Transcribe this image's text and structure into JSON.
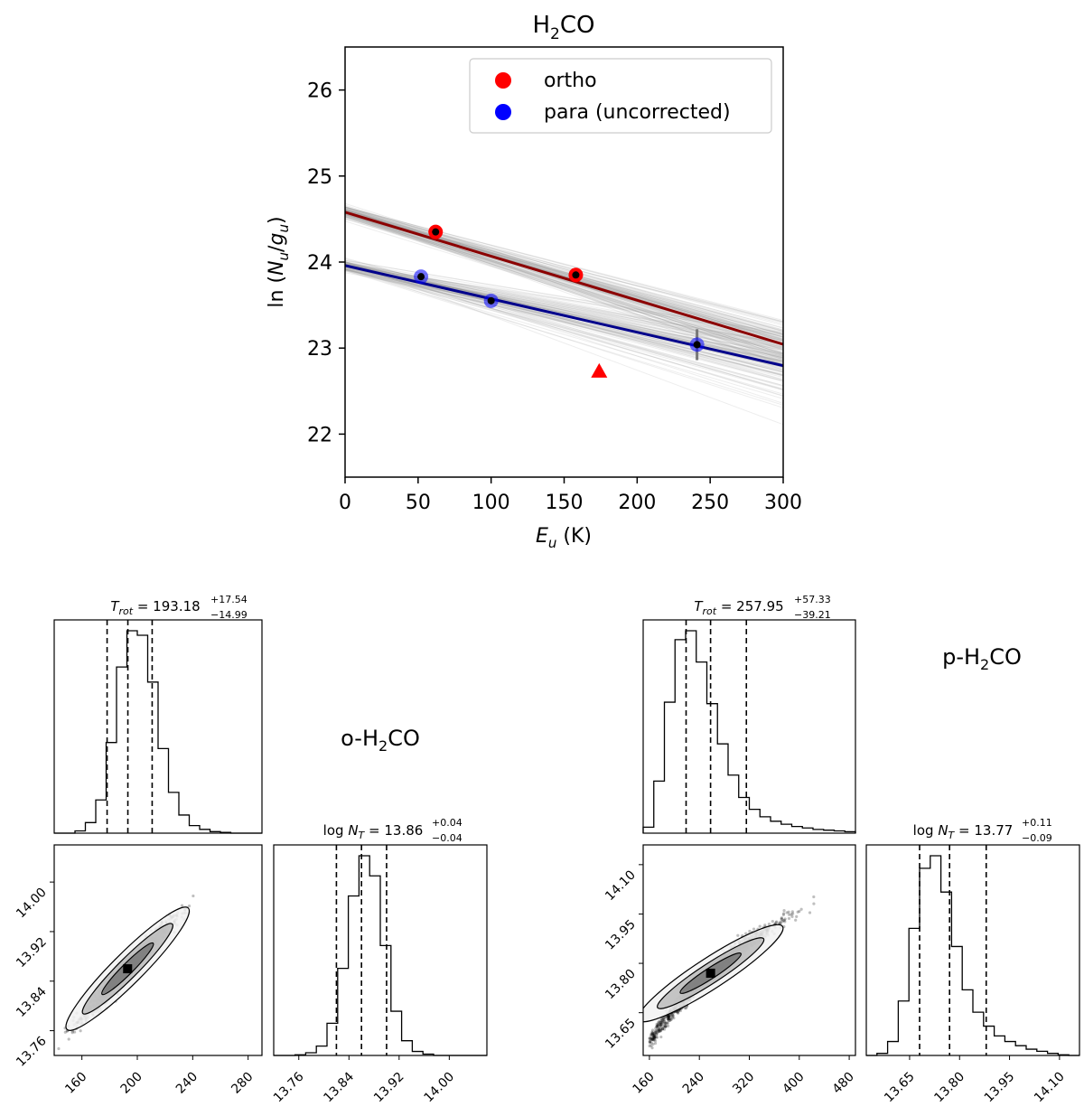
{
  "chart_data": [
    {
      "type": "scatter",
      "title_main": "H",
      "title_sub": "2",
      "title_end": "CO",
      "xlabel_var": "E",
      "xlabel_sub": "u",
      "xlabel_unit": " (K)",
      "ylabel_pre": "ln (",
      "ylabel_n": "N",
      "ylabel_nsub": "u",
      "ylabel_slash": "/",
      "ylabel_g": "g",
      "ylabel_gsub": "u",
      "ylabel_post": ")",
      "xlim": [
        0,
        300
      ],
      "ylim": [
        21.5,
        26.5
      ],
      "xticks": [
        "0",
        "50",
        "100",
        "150",
        "200",
        "250",
        "300"
      ],
      "yticks": [
        "22",
        "23",
        "24",
        "25",
        "26"
      ],
      "legend": {
        "placement": "top-right",
        "entries": [
          "ortho",
          "para (uncorrected)"
        ]
      },
      "series": [
        {
          "name": "ortho",
          "color": "#ff0000",
          "fit_color": "#8b0000",
          "x": [
            62,
            158
          ],
          "y": [
            24.35,
            23.85
          ],
          "fit": {
            "intercept": 24.58,
            "slope": -0.00512
          }
        },
        {
          "name": "para (uncorrected)",
          "color": "#0000ff",
          "fit_color": "#00008b",
          "x": [
            52,
            100,
            241
          ],
          "y": [
            23.83,
            23.55,
            23.04
          ],
          "yerr": [
            0,
            0,
            0.18
          ],
          "fit": {
            "intercept": 23.96,
            "slope": -0.00388
          }
        }
      ],
      "upper_limit": {
        "x": 174,
        "y": 22.73,
        "color": "#ff0000"
      }
    },
    {
      "type": "histogram",
      "label_main": "o-H",
      "label_sub": "2",
      "label_end": "CO",
      "title_var": "T",
      "title_sub": "rot",
      "title_val": " = 193.18",
      "title_sup": "+17.54",
      "title_inf": "−14.99",
      "xlim": [
        140,
        290
      ],
      "quantiles": [
        178.19,
        193.18,
        210.72
      ],
      "bins_start": 140,
      "bin_width": 7.5,
      "counts": [
        0,
        0,
        3,
        14,
        44,
        120,
        220,
        268,
        262,
        200,
        112,
        54,
        24,
        10,
        5,
        2,
        1,
        0,
        0,
        0
      ]
    },
    {
      "type": "scatter",
      "xlim": [
        140,
        290
      ],
      "ylim": [
        13.72,
        14.06
      ],
      "xticks": [
        "160",
        "200",
        "240",
        "280"
      ],
      "yticks": [
        "13.76",
        "13.84",
        "13.92",
        "14.00"
      ]
    },
    {
      "type": "histogram",
      "title_var": "N",
      "title_sub": "T",
      "title_val": " = 13.86",
      "title_pre": "log ",
      "title_sup": "+0.04",
      "title_inf": "−0.04",
      "xlim": [
        13.72,
        14.06
      ],
      "quantiles": [
        13.82,
        13.86,
        13.9
      ],
      "bins_start": 13.72,
      "bin_width": 0.017,
      "counts": [
        0,
        0,
        1,
        4,
        14,
        48,
        130,
        238,
        298,
        268,
        164,
        66,
        22,
        6,
        2,
        0,
        0,
        0,
        0,
        0
      ],
      "xticks": [
        "13.76",
        "13.84",
        "13.92",
        "14.00"
      ]
    },
    {
      "type": "histogram",
      "label_main": "p-H",
      "label_sub": "2",
      "label_end": "CO",
      "title_var": "T",
      "title_sub": "rot",
      "title_val": " = 257.95",
      "title_sup": "+57.33",
      "title_inf": "−39.21",
      "xlim": [
        150,
        490
      ],
      "quantiles": [
        218.74,
        257.95,
        315.28
      ],
      "bins_start": 150,
      "bin_width": 17,
      "counts": [
        8,
        70,
        176,
        260,
        272,
        230,
        174,
        120,
        78,
        48,
        32,
        22,
        16,
        12,
        9,
        7,
        5,
        4,
        3,
        2
      ],
      "xticks": [
        "160",
        "240",
        "320",
        "400",
        "480"
      ]
    },
    {
      "type": "scatter",
      "xlim": [
        150,
        490
      ],
      "ylim": [
        13.52,
        14.16
      ],
      "xticks": [
        "160",
        "240",
        "320",
        "400",
        "480"
      ],
      "yticks": [
        "13.65",
        "13.80",
        "13.95",
        "14.10"
      ]
    },
    {
      "type": "histogram",
      "title_var": "N",
      "title_sub": "T",
      "title_val": " = 13.77",
      "title_pre": "log ",
      "title_sup": "+0.11",
      "title_inf": "−0.09",
      "xlim": [
        13.52,
        14.16
      ],
      "quantiles": [
        13.68,
        13.77,
        13.88
      ],
      "bins_start": 13.52,
      "bin_width": 0.032,
      "counts": [
        0,
        3,
        20,
        78,
        182,
        268,
        286,
        234,
        156,
        94,
        62,
        42,
        28,
        20,
        14,
        9,
        6,
        3,
        1,
        0
      ],
      "xticks": [
        "13.65",
        "13.80",
        "13.95",
        "14.10"
      ]
    }
  ]
}
